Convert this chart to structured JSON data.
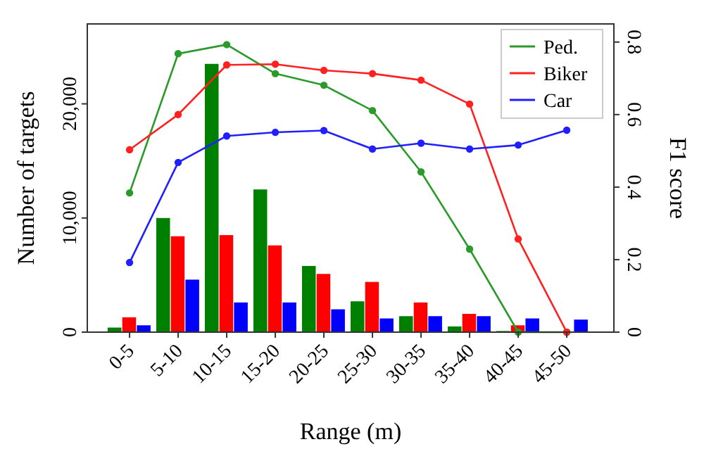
{
  "chart_data": {
    "type": "bar",
    "xlabel": "Range (m)",
    "ylabel": "Number of targets",
    "y2label": "F1 score",
    "categories": [
      "0-5",
      "5-10",
      "10-15",
      "15-20",
      "20-25",
      "25-30",
      "30-35",
      "35-40",
      "40-45",
      "45-50"
    ],
    "ylim": [
      0,
      27000
    ],
    "yticks": [
      0,
      {
        "value": 10000,
        "label": "10,000"
      },
      {
        "value": 20000,
        "label": "20,000"
      }
    ],
    "y2lim": [
      0,
      0.85
    ],
    "y2ticks": [
      0,
      0.2,
      0.4,
      0.6,
      0.8
    ],
    "series": [
      {
        "color": "#008000",
        "values": [
          400,
          10000,
          23500,
          12500,
          5800,
          2700,
          1400,
          500,
          100,
          0
        ]
      },
      {
        "color": "#ff0000",
        "values": [
          1300,
          8400,
          8500,
          7600,
          5100,
          4400,
          2600,
          1600,
          600,
          null
        ]
      },
      {
        "color": "#0000ff",
        "values": [
          600,
          4600,
          2600,
          2600,
          2000,
          1200,
          1400,
          1400,
          1200,
          1100
        ]
      },
      {
        "type": "line",
        "axis": "y2",
        "name": "Ped.",
        "color": "#2a9a2a",
        "values": [
          0.384,
          0.768,
          0.793,
          0.713,
          0.681,
          0.611,
          0.442,
          0.229,
          0,
          0
        ]
      },
      {
        "type": "line",
        "axis": "y2",
        "name": "Biker",
        "color": "#ff2020",
        "values": [
          0.503,
          0.6,
          0.737,
          0.739,
          0.722,
          0.713,
          0.695,
          0.629,
          0.257,
          0
        ]
      },
      {
        "type": "line",
        "axis": "y2",
        "name": "Car",
        "color": "#2020ff",
        "values": [
          0.192,
          0.468,
          0.541,
          0.551,
          0.556,
          0.505,
          0.521,
          0.505,
          0.516,
          0.557
        ]
      }
    ],
    "marker": "circle",
    "line_style": "solid",
    "grid": false,
    "legend": "top right"
  }
}
